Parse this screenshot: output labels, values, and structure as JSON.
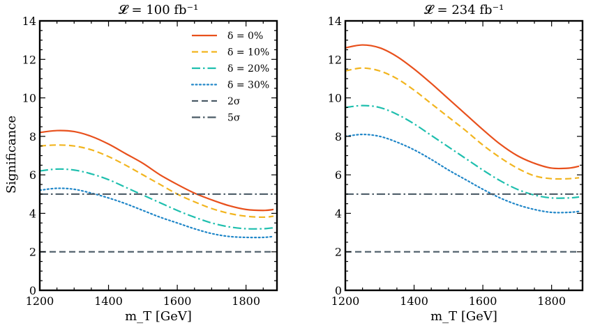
{
  "figure": {
    "ylabel": "Significance"
  },
  "chart_data": [
    {
      "type": "line",
      "title": "𝓛 = 100 fb⁻¹",
      "xlabel": "m_T [GeV]",
      "ylabel": "Significance",
      "xlim": [
        1200,
        1890
      ],
      "ylim": [
        0,
        14
      ],
      "xticks": [
        1200,
        1400,
        1600,
        1800
      ],
      "yticks": [
        0,
        2,
        4,
        6,
        8,
        10,
        12,
        14
      ],
      "legend": {
        "location": "top-right"
      },
      "x": [
        1200,
        1250,
        1300,
        1350,
        1400,
        1450,
        1500,
        1550,
        1600,
        1650,
        1700,
        1750,
        1800,
        1850,
        1880
      ],
      "series": [
        {
          "name": "δ = 0%",
          "color": "#e8501c",
          "style": "solid",
          "values": [
            8.2,
            8.3,
            8.25,
            8.0,
            7.6,
            7.1,
            6.6,
            6.0,
            5.5,
            5.05,
            4.7,
            4.4,
            4.2,
            4.15,
            4.2
          ]
        },
        {
          "name": "δ = 10%",
          "color": "#f2b51f",
          "style": "dashed",
          "values": [
            7.5,
            7.55,
            7.5,
            7.3,
            6.95,
            6.5,
            6.0,
            5.5,
            5.0,
            4.6,
            4.25,
            4.0,
            3.85,
            3.8,
            3.85
          ]
        },
        {
          "name": "δ = 20%",
          "color": "#1fbfae",
          "style": "dashdot",
          "values": [
            6.2,
            6.3,
            6.25,
            6.05,
            5.75,
            5.35,
            4.95,
            4.55,
            4.15,
            3.8,
            3.5,
            3.3,
            3.2,
            3.2,
            3.25
          ]
        },
        {
          "name": "δ = 30%",
          "color": "#1f86c8",
          "style": "dotted",
          "values": [
            5.2,
            5.3,
            5.25,
            5.05,
            4.8,
            4.5,
            4.15,
            3.8,
            3.5,
            3.2,
            2.95,
            2.8,
            2.75,
            2.75,
            2.8
          ]
        },
        {
          "name": "2σ",
          "color": "#4a5a66",
          "style": "dashed",
          "values": [
            2,
            2,
            2,
            2,
            2,
            2,
            2,
            2,
            2,
            2,
            2,
            2,
            2,
            2,
            2
          ]
        },
        {
          "name": "5σ",
          "color": "#4a5a66",
          "style": "dashdot",
          "values": [
            5,
            5,
            5,
            5,
            5,
            5,
            5,
            5,
            5,
            5,
            5,
            5,
            5,
            5,
            5
          ]
        }
      ]
    },
    {
      "type": "line",
      "title": "𝓛 = 234 fb⁻¹",
      "xlabel": "m_T [GeV]",
      "ylabel": "",
      "xlim": [
        1200,
        1890
      ],
      "ylim": [
        0,
        14
      ],
      "xticks": [
        1200,
        1400,
        1600,
        1800
      ],
      "yticks": [
        0,
        2,
        4,
        6,
        8,
        10,
        12,
        14
      ],
      "x": [
        1200,
        1250,
        1300,
        1350,
        1400,
        1450,
        1500,
        1550,
        1600,
        1650,
        1700,
        1750,
        1800,
        1850,
        1880
      ],
      "series": [
        {
          "name": "δ = 0%",
          "color": "#e8501c",
          "style": "solid",
          "values": [
            12.6,
            12.75,
            12.6,
            12.15,
            11.5,
            10.75,
            9.95,
            9.15,
            8.35,
            7.6,
            7.0,
            6.6,
            6.35,
            6.35,
            6.45
          ]
        },
        {
          "name": "δ = 10%",
          "color": "#f2b51f",
          "style": "dashed",
          "values": [
            11.4,
            11.55,
            11.4,
            11.0,
            10.4,
            9.7,
            9.0,
            8.3,
            7.55,
            6.9,
            6.35,
            5.95,
            5.8,
            5.8,
            5.85
          ]
        },
        {
          "name": "δ = 20%",
          "color": "#1fbfae",
          "style": "dashdot",
          "values": [
            9.5,
            9.6,
            9.5,
            9.15,
            8.65,
            8.05,
            7.45,
            6.85,
            6.25,
            5.7,
            5.25,
            4.95,
            4.8,
            4.8,
            4.85
          ]
        },
        {
          "name": "δ = 30%",
          "color": "#1f86c8",
          "style": "dotted",
          "values": [
            8.0,
            8.1,
            8.0,
            7.7,
            7.3,
            6.8,
            6.25,
            5.75,
            5.25,
            4.8,
            4.45,
            4.2,
            4.05,
            4.05,
            4.1
          ]
        },
        {
          "name": "2σ",
          "color": "#4a5a66",
          "style": "dashed",
          "values": [
            2,
            2,
            2,
            2,
            2,
            2,
            2,
            2,
            2,
            2,
            2,
            2,
            2,
            2,
            2
          ]
        },
        {
          "name": "5σ",
          "color": "#4a5a66",
          "style": "dashdot",
          "values": [
            5,
            5,
            5,
            5,
            5,
            5,
            5,
            5,
            5,
            5,
            5,
            5,
            5,
            5,
            5
          ]
        }
      ]
    }
  ]
}
